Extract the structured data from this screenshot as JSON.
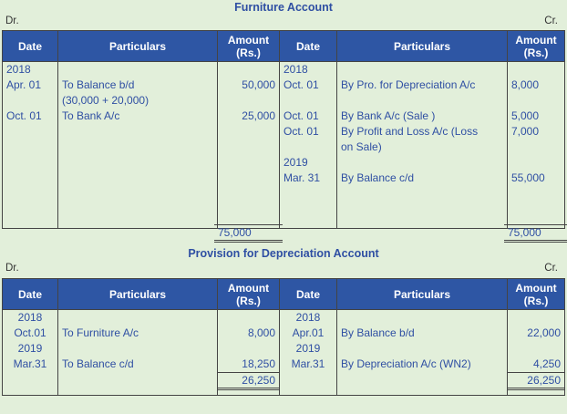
{
  "furniture": {
    "title": "Furniture Account",
    "dr": "Dr.",
    "cr": "Cr.",
    "headers": {
      "date": "Date",
      "particulars": "Particulars",
      "amount": "Amount",
      "amount_unit": "(Rs.)"
    },
    "debit": [
      {
        "date": "2018",
        "particulars": "",
        "amount": ""
      },
      {
        "date": "Apr. 01",
        "particulars": "To Balance b/d",
        "amount": "50,000"
      },
      {
        "date": "",
        "particulars": "(30,000 + 20,000)",
        "amount": ""
      },
      {
        "date": "Oct. 01",
        "particulars": "To Bank A/c",
        "amount": "25,000"
      }
    ],
    "credit": [
      {
        "date": "2018",
        "particulars": "",
        "amount": ""
      },
      {
        "date": "Oct. 01",
        "particulars": "By Pro. for Depreciation A/c",
        "amount": "8,000"
      },
      {
        "date": "Oct. 01",
        "particulars": "By Bank A/c (Sale )",
        "amount": "5,000"
      },
      {
        "date": "Oct. 01",
        "particulars": "By Profit and Loss A/c (Loss",
        "amount": "7,000"
      },
      {
        "date": "",
        "particulars": "on Sale)",
        "amount": ""
      },
      {
        "date": "2019",
        "particulars": "",
        "amount": ""
      },
      {
        "date": "Mar. 31",
        "particulars": "By Balance c/d",
        "amount": "55,000"
      }
    ],
    "debit_total": "75,000",
    "credit_total": "75,000"
  },
  "provision": {
    "title": "Provision for Depreciation Account",
    "dr": "Dr.",
    "cr": "Cr.",
    "headers": {
      "date": "Date",
      "particulars": "Particulars",
      "amount": "Amount",
      "amount_unit": "(Rs.)"
    },
    "debit": [
      {
        "date": "2018",
        "particulars": "",
        "amount": ""
      },
      {
        "date": "Oct.01",
        "particulars": "To Furniture A/c",
        "amount": "8,000"
      },
      {
        "date": "2019",
        "particulars": "",
        "amount": ""
      },
      {
        "date": "Mar.31",
        "particulars": "To Balance c/d",
        "amount": "18,250"
      }
    ],
    "credit": [
      {
        "date": "2018",
        "particulars": "",
        "amount": ""
      },
      {
        "date": "Apr.01",
        "particulars": "By Balance b/d",
        "amount": "22,000"
      },
      {
        "date": "2019",
        "particulars": "",
        "amount": ""
      },
      {
        "date": "Mar.31",
        "particulars": "By Depreciation A/c (WN2)",
        "amount": "4,250"
      }
    ],
    "debit_total": "26,250",
    "credit_total": "26,250"
  }
}
